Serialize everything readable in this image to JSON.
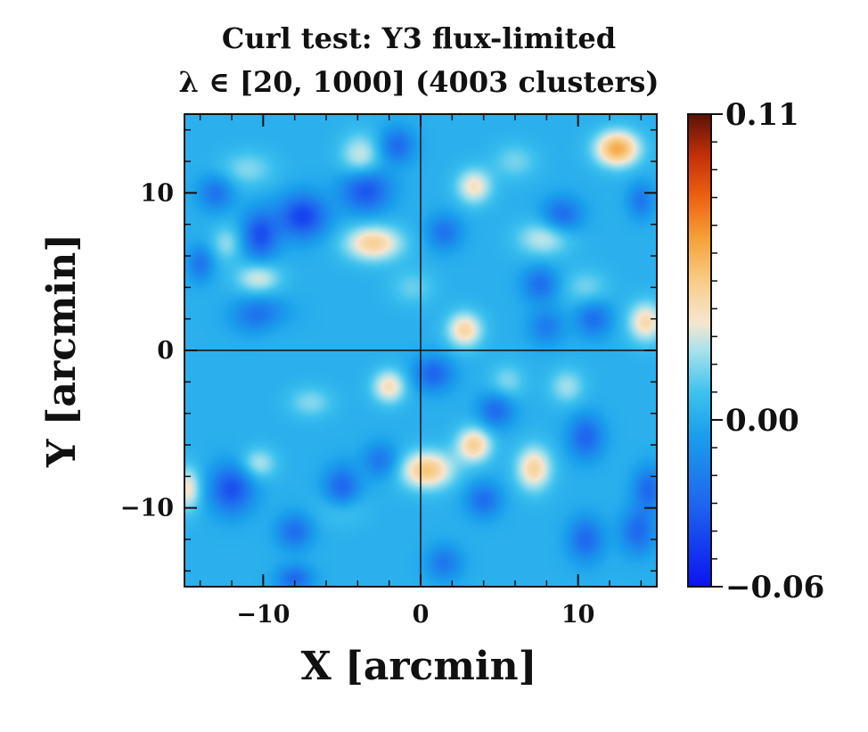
{
  "chart_data": {
    "type": "heatmap",
    "title": "Curl test:  Y3 flux-limited",
    "subtitle": "λ ∈ [20, 1000] (4003 clusters)",
    "xlabel": "X [arcmin]",
    "ylabel": "Y [arcmin]",
    "xlim": [
      -15,
      15
    ],
    "ylim": [
      -15,
      15
    ],
    "x_ticks": [
      -10,
      0,
      10
    ],
    "y_ticks": [
      -10,
      0,
      10
    ],
    "x_tick_labels": [
      "−10",
      "0",
      "10"
    ],
    "y_tick_labels": [
      "−10",
      "0",
      "10"
    ],
    "crosshair": {
      "x": 0,
      "y": 0
    },
    "colorbar": {
      "vmin": -0.06,
      "vmax": 0.11,
      "ticks": [
        0.11,
        0.0,
        -0.06
      ],
      "tick_labels": [
        "0.11",
        "0.00",
        "−0.06"
      ],
      "colormap": [
        "#0a14f0",
        "#1f66ee",
        "#1aa0ec",
        "#3ec2ee",
        "#a8e2ec",
        "#f6e6d0",
        "#f8cc86",
        "#f6a23a",
        "#ee6212",
        "#c43008",
        "#5a1208"
      ],
      "colormap_stops": [
        -0.06,
        -0.03,
        -0.005,
        0.01,
        0.025,
        0.035,
        0.05,
        0.065,
        0.08,
        0.095,
        0.11
      ]
    },
    "background_value": 0.002,
    "features": [
      {
        "x": 12.5,
        "y": 12.8,
        "value": 0.06,
        "sx": 1.0,
        "sy": 0.8
      },
      {
        "x": 0.4,
        "y": -7.6,
        "value": 0.05,
        "sx": 1.2,
        "sy": 0.85
      },
      {
        "x": -3.0,
        "y": 6.8,
        "value": 0.045,
        "sx": 1.3,
        "sy": 0.8
      },
      {
        "x": 3.4,
        "y": -6.0,
        "value": 0.045,
        "sx": 0.8,
        "sy": 0.8
      },
      {
        "x": 7.2,
        "y": -7.5,
        "value": 0.043,
        "sx": 0.8,
        "sy": 1.0
      },
      {
        "x": 2.8,
        "y": 1.3,
        "value": 0.042,
        "sx": 0.8,
        "sy": 0.8
      },
      {
        "x": 14.3,
        "y": 1.8,
        "value": 0.04,
        "sx": 0.8,
        "sy": 0.9
      },
      {
        "x": -2.0,
        "y": -2.3,
        "value": 0.038,
        "sx": 0.75,
        "sy": 0.75
      },
      {
        "x": 3.4,
        "y": 10.4,
        "value": 0.036,
        "sx": 0.8,
        "sy": 0.8
      },
      {
        "x": -14.8,
        "y": -8.8,
        "value": 0.035,
        "sx": 0.6,
        "sy": 1.0
      },
      {
        "x": -3.8,
        "y": 12.3,
        "value": 0.03,
        "sx": 0.9,
        "sy": 1.0
      },
      {
        "x": -10.3,
        "y": 4.6,
        "value": 0.03,
        "sx": 1.0,
        "sy": 0.7
      },
      {
        "x": 7.8,
        "y": 7.1,
        "value": 0.027,
        "sx": 1.2,
        "sy": 0.8
      },
      {
        "x": -10.3,
        "y": -7.2,
        "value": 0.025,
        "sx": 0.8,
        "sy": 0.7
      },
      {
        "x": 9.3,
        "y": -2.3,
        "value": 0.022,
        "sx": 0.8,
        "sy": 0.8
      },
      {
        "x": -12.3,
        "y": 6.8,
        "value": 0.02,
        "sx": 0.7,
        "sy": 0.8
      },
      {
        "x": -9.5,
        "y": 2.0,
        "value": 0.018,
        "sx": 1.0,
        "sy": 0.8
      },
      {
        "x": 5.5,
        "y": -2.0,
        "value": 0.018,
        "sx": 0.8,
        "sy": 0.8
      },
      {
        "x": -7.0,
        "y": -3.3,
        "value": 0.018,
        "sx": 1.0,
        "sy": 0.7
      },
      {
        "x": -11.0,
        "y": 11.5,
        "value": 0.018,
        "sx": 1.2,
        "sy": 0.8
      },
      {
        "x": -5.0,
        "y": -10.0,
        "value": 0.016,
        "sx": 1.0,
        "sy": 0.8
      },
      {
        "x": 10.5,
        "y": 4.0,
        "value": 0.016,
        "sx": 1.0,
        "sy": 0.8
      },
      {
        "x": 6.0,
        "y": 12.0,
        "value": 0.016,
        "sx": 1.0,
        "sy": 0.8
      },
      {
        "x": -0.5,
        "y": 4.0,
        "value": 0.014,
        "sx": 1.0,
        "sy": 0.8
      },
      {
        "x": -7.5,
        "y": 8.5,
        "value": -0.045,
        "sx": 1.1,
        "sy": 1.0
      },
      {
        "x": -10.0,
        "y": 2.2,
        "value": -0.04,
        "sx": 1.2,
        "sy": 0.8
      },
      {
        "x": -10.2,
        "y": 7.3,
        "value": -0.04,
        "sx": 0.8,
        "sy": 1.1
      },
      {
        "x": -3.5,
        "y": 10.2,
        "value": -0.04,
        "sx": 1.1,
        "sy": 1.0
      },
      {
        "x": -12.0,
        "y": -8.8,
        "value": -0.04,
        "sx": 1.0,
        "sy": 1.1
      },
      {
        "x": -5.0,
        "y": -8.8,
        "value": -0.035,
        "sx": 0.8,
        "sy": 1.0
      },
      {
        "x": 0.8,
        "y": -1.5,
        "value": -0.032,
        "sx": 0.9,
        "sy": 0.8
      },
      {
        "x": 4.8,
        "y": -3.8,
        "value": -0.03,
        "sx": 0.8,
        "sy": 0.8
      },
      {
        "x": 10.5,
        "y": -5.5,
        "value": -0.032,
        "sx": 0.8,
        "sy": 1.0
      },
      {
        "x": 14.5,
        "y": -8.8,
        "value": -0.03,
        "sx": 0.7,
        "sy": 1.0
      },
      {
        "x": 10.5,
        "y": -12.0,
        "value": -0.03,
        "sx": 0.8,
        "sy": 1.0
      },
      {
        "x": 13.8,
        "y": -11.5,
        "value": -0.03,
        "sx": 0.8,
        "sy": 1.0
      },
      {
        "x": 9.0,
        "y": 8.6,
        "value": -0.03,
        "sx": 0.9,
        "sy": 0.8
      },
      {
        "x": 11.0,
        "y": 2.0,
        "value": -0.028,
        "sx": 0.8,
        "sy": 0.8
      },
      {
        "x": 7.6,
        "y": 4.2,
        "value": -0.028,
        "sx": 0.8,
        "sy": 0.8
      },
      {
        "x": 1.5,
        "y": 7.5,
        "value": -0.026,
        "sx": 0.8,
        "sy": 0.8
      },
      {
        "x": -1.5,
        "y": 13.0,
        "value": -0.03,
        "sx": 0.8,
        "sy": 0.8
      },
      {
        "x": 4.0,
        "y": -9.5,
        "value": -0.028,
        "sx": 0.8,
        "sy": 0.8
      },
      {
        "x": -8.0,
        "y": -11.5,
        "value": -0.028,
        "sx": 0.8,
        "sy": 0.8
      },
      {
        "x": -8.0,
        "y": -14.5,
        "value": -0.03,
        "sx": 0.8,
        "sy": 0.6
      },
      {
        "x": -14.0,
        "y": 5.5,
        "value": -0.025,
        "sx": 0.6,
        "sy": 0.8
      },
      {
        "x": -13.0,
        "y": 10.0,
        "value": -0.026,
        "sx": 0.8,
        "sy": 0.8
      },
      {
        "x": 8.0,
        "y": 1.5,
        "value": -0.022,
        "sx": 0.8,
        "sy": 0.8
      },
      {
        "x": -2.5,
        "y": -7.0,
        "value": -0.025,
        "sx": 0.8,
        "sy": 0.8
      },
      {
        "x": 14.0,
        "y": 9.5,
        "value": -0.024,
        "sx": 0.6,
        "sy": 0.8
      },
      {
        "x": 1.5,
        "y": -13.5,
        "value": -0.024,
        "sx": 0.8,
        "sy": 0.8
      }
    ]
  }
}
